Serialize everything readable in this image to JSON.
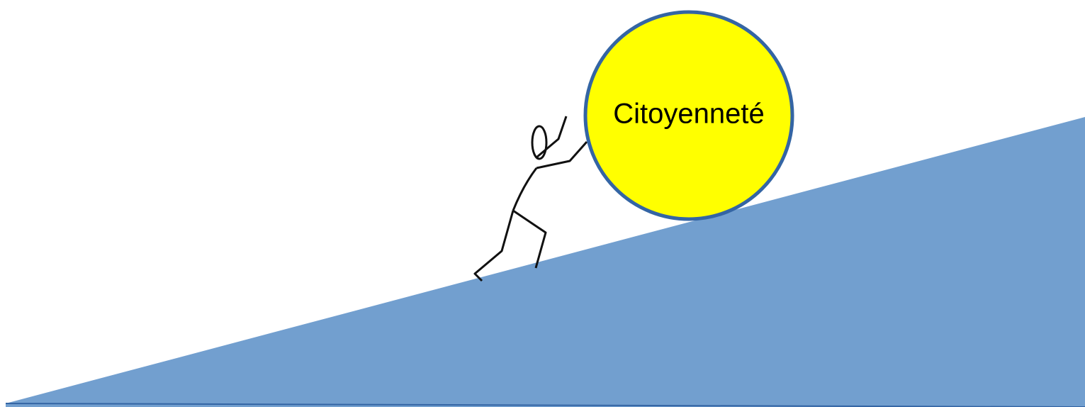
{
  "label": "Citoyenneté"
}
